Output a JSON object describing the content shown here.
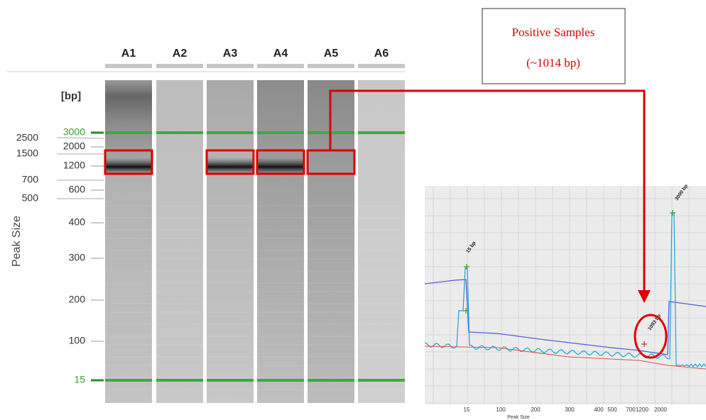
{
  "gel": {
    "lanes": [
      "A1",
      "A2",
      "A3",
      "A4",
      "A5",
      "A6"
    ],
    "unit": "[bp]",
    "axis_label": "Peak Size",
    "left_ladder": [
      "2500",
      "1500",
      "700",
      "500"
    ],
    "right_ladder": [
      "3000",
      "2000",
      "1200",
      "600",
      "400",
      "300",
      "200",
      "100",
      "15"
    ]
  },
  "annotation": {
    "lines": [
      "Positive Samples",
      "(~1014 bp)"
    ]
  },
  "electropherogram": {
    "peak_labels": [
      "15 bp",
      "1093 bp",
      "3000 bp"
    ],
    "x_ticks": [
      "15",
      "100",
      "200",
      "300",
      "400",
      "500",
      "700",
      "1200",
      "2000"
    ],
    "x_label": "Peak Size"
  }
}
